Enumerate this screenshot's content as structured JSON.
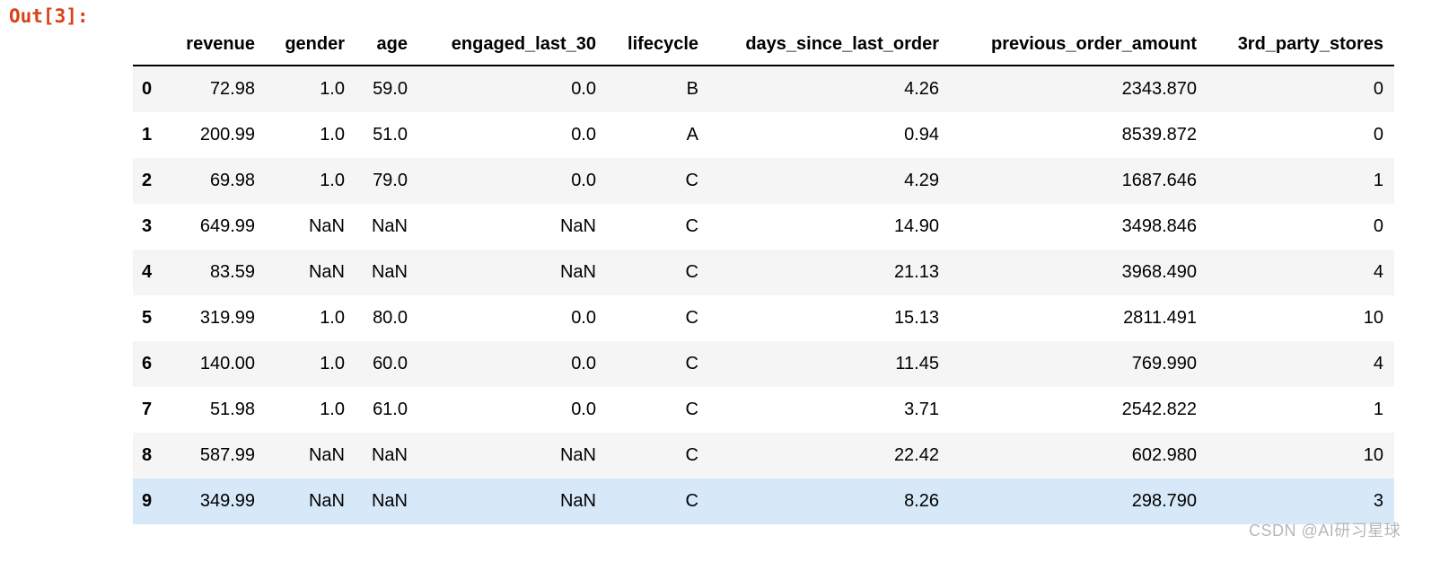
{
  "prompt": "Out[3]:",
  "table": {
    "columns": [
      "revenue",
      "gender",
      "age",
      "engaged_last_30",
      "lifecycle",
      "days_since_last_order",
      "previous_order_amount",
      "3rd_party_stores"
    ],
    "rows": [
      {
        "index": "0",
        "cells": [
          "72.98",
          "1.0",
          "59.0",
          "0.0",
          "B",
          "4.26",
          "2343.870",
          "0"
        ]
      },
      {
        "index": "1",
        "cells": [
          "200.99",
          "1.0",
          "51.0",
          "0.0",
          "A",
          "0.94",
          "8539.872",
          "0"
        ]
      },
      {
        "index": "2",
        "cells": [
          "69.98",
          "1.0",
          "79.0",
          "0.0",
          "C",
          "4.29",
          "1687.646",
          "1"
        ]
      },
      {
        "index": "3",
        "cells": [
          "649.99",
          "NaN",
          "NaN",
          "NaN",
          "C",
          "14.90",
          "3498.846",
          "0"
        ]
      },
      {
        "index": "4",
        "cells": [
          "83.59",
          "NaN",
          "NaN",
          "NaN",
          "C",
          "21.13",
          "3968.490",
          "4"
        ]
      },
      {
        "index": "5",
        "cells": [
          "319.99",
          "1.0",
          "80.0",
          "0.0",
          "C",
          "15.13",
          "2811.491",
          "10"
        ]
      },
      {
        "index": "6",
        "cells": [
          "140.00",
          "1.0",
          "60.0",
          "0.0",
          "C",
          "11.45",
          "769.990",
          "4"
        ]
      },
      {
        "index": "7",
        "cells": [
          "51.98",
          "1.0",
          "61.0",
          "0.0",
          "C",
          "3.71",
          "2542.822",
          "1"
        ]
      },
      {
        "index": "8",
        "cells": [
          "587.99",
          "NaN",
          "NaN",
          "NaN",
          "C",
          "22.42",
          "602.980",
          "10"
        ]
      },
      {
        "index": "9",
        "cells": [
          "349.99",
          "NaN",
          "NaN",
          "NaN",
          "C",
          "8.26",
          "298.790",
          "3"
        ]
      }
    ],
    "highlight_row_index": 9
  },
  "watermark": "CSDN @AI研习星球",
  "colors": {
    "accent": "#d84315",
    "stripe": "#f5f5f5",
    "highlight": "#d7e8f8",
    "watermark": "#b5b8ba",
    "header_border": "#000000"
  }
}
